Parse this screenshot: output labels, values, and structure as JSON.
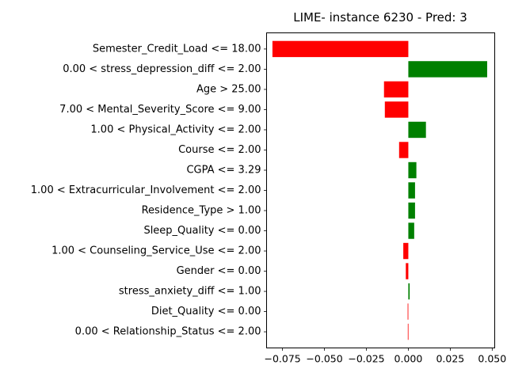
{
  "chart_data": {
    "type": "bar",
    "orientation": "horizontal",
    "title": "LIME- instance 6230 - Pred: 3",
    "xlabel": "",
    "ylabel": "",
    "xlim": [
      -0.0845,
      0.0515
    ],
    "xticks": [
      -0.075,
      -0.05,
      -0.025,
      0.0,
      0.025,
      0.05
    ],
    "xtick_labels": [
      "−0.075",
      "−0.050",
      "−0.025",
      "0.000",
      "0.025",
      "0.050"
    ],
    "grid": false,
    "colors": {
      "positive": "#008000",
      "negative": "#ff0000"
    },
    "categories": [
      "Semester_Credit_Load <= 18.00",
      "0.00 < stress_depression_diff <= 2.00",
      "Age > 25.00",
      "7.00 < Mental_Severity_Score <= 9.00",
      "1.00 < Physical_Activity <= 2.00",
      "Course <= 2.00",
      "CGPA <= 3.29",
      "1.00 < Extracurricular_Involvement <= 2.00",
      "Residence_Type > 1.00",
      "Sleep_Quality <= 0.00",
      "1.00 < Counseling_Service_Use <= 2.00",
      "Gender <= 0.00",
      "stress_anxiety_diff <= 1.00",
      "Diet_Quality <= 0.00",
      "0.00 < Relationship_Status <= 2.00"
    ],
    "values": [
      -0.081,
      0.047,
      -0.0145,
      -0.014,
      0.0105,
      -0.0055,
      0.0048,
      0.004,
      0.004,
      0.0035,
      -0.003,
      -0.0015,
      0.0008,
      -0.0004,
      -0.0003
    ]
  }
}
